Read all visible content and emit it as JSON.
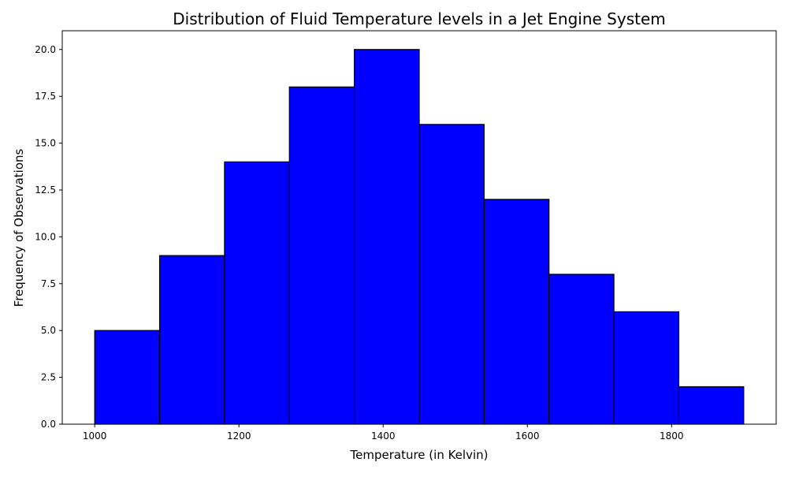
{
  "chart_data": {
    "type": "bar",
    "title": "Distribution of Fluid Temperature levels in a Jet Engine System",
    "xlabel": "Temperature (in Kelvin)",
    "ylabel": "Frequency of Observations",
    "bin_edges": [
      1000,
      1090,
      1180,
      1270,
      1360,
      1450,
      1540,
      1630,
      1720,
      1810,
      1900
    ],
    "values": [
      5,
      9,
      14,
      18,
      20,
      16,
      12,
      8,
      6,
      2
    ],
    "xlim": [
      955,
      1945
    ],
    "ylim": [
      0,
      21
    ],
    "xticks": [
      1000,
      1200,
      1400,
      1600,
      1800
    ],
    "xtick_labels": [
      "1000",
      "1200",
      "1400",
      "1600",
      "1800"
    ],
    "yticks": [
      0,
      2.5,
      5,
      7.5,
      10,
      12.5,
      15,
      17.5,
      20
    ],
    "ytick_labels": [
      "0.0",
      "2.5",
      "5.0",
      "7.5",
      "10.0",
      "12.5",
      "15.0",
      "17.5",
      "20.0"
    ],
    "bar_color": "#0000ff",
    "edge_color": "#000000",
    "grid": false,
    "legend": "none"
  }
}
